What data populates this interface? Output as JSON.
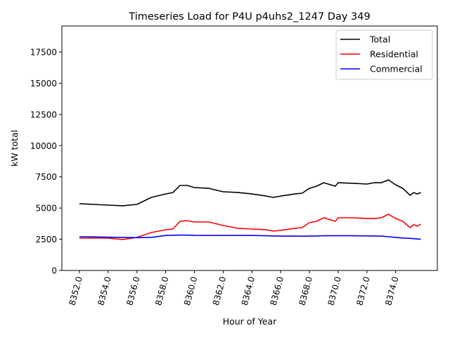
{
  "chart_data": {
    "type": "line",
    "title": "Timeseries Load for P4U p4uhs2_1247  Day 349",
    "xlabel": "Hour of Year",
    "ylabel": "kW total",
    "xlim": [
      8350.78,
      8376.9
    ],
    "ylim": [
      0,
      19580
    ],
    "xticks": [
      8352,
      8354,
      8356,
      8358,
      8360,
      8362,
      8364,
      8366,
      8368,
      8370,
      8372,
      8374
    ],
    "xtick_labels": [
      "8352.0",
      "8354.0",
      "8356.0",
      "8358.0",
      "8360.0",
      "8362.0",
      "8364.0",
      "8366.0",
      "8368.0",
      "8370.0",
      "8372.0",
      "8374.0"
    ],
    "yticks": [
      0,
      2500,
      5000,
      7500,
      10000,
      12500,
      15000,
      17500
    ],
    "ytick_labels": [
      "0",
      "2500",
      "5000",
      "7500",
      "10000",
      "12500",
      "15000",
      "17500"
    ],
    "legend_position": "top-right",
    "x": [
      8352,
      8353,
      8354,
      8355,
      8356,
      8357,
      8358,
      8358.5,
      8359,
      8359.5,
      8360,
      8361,
      8362,
      8363,
      8364,
      8365,
      8365.5,
      8366,
      8367,
      8367.5,
      8368,
      8368.5,
      8369,
      8369.8,
      8370,
      8371,
      8372,
      8372.5,
      8373,
      8373.5,
      8374,
      8374.5,
      8375,
      8375.25,
      8375.5,
      8375.75
    ],
    "series": [
      {
        "name": "Total",
        "color": "#000000",
        "values": [
          5345,
          5290,
          5233,
          5180,
          5290,
          5850,
          6130,
          6240,
          6810,
          6810,
          6640,
          6580,
          6300,
          6250,
          6130,
          5960,
          5850,
          5960,
          6130,
          6190,
          6580,
          6750,
          7030,
          6750,
          7030,
          6980,
          6920,
          7030,
          7030,
          7250,
          6860,
          6580,
          6020,
          6240,
          6130,
          6240
        ]
      },
      {
        "name": "Residential",
        "color": "#ff0000",
        "values": [
          2590,
          2590,
          2590,
          2480,
          2650,
          3040,
          3260,
          3320,
          3940,
          3990,
          3880,
          3880,
          3600,
          3380,
          3320,
          3260,
          3150,
          3210,
          3380,
          3430,
          3830,
          3940,
          4220,
          3940,
          4220,
          4220,
          4160,
          4160,
          4220,
          4500,
          4160,
          3940,
          3430,
          3660,
          3550,
          3710
        ]
      },
      {
        "name": "Commercial",
        "color": "#0000ff",
        "values": [
          2700,
          2690,
          2660,
          2650,
          2630,
          2650,
          2800,
          2820,
          2830,
          2830,
          2810,
          2800,
          2800,
          2800,
          2800,
          2780,
          2760,
          2750,
          2750,
          2740,
          2750,
          2760,
          2780,
          2780,
          2780,
          2780,
          2770,
          2760,
          2750,
          2700,
          2650,
          2600,
          2570,
          2550,
          2520,
          2500
        ]
      }
    ]
  }
}
